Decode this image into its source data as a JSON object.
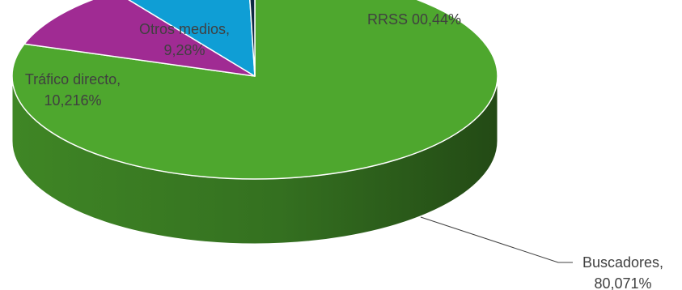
{
  "chart_data": {
    "type": "pie",
    "title": "",
    "categories": [
      "Buscadores",
      "Tráfico directo",
      "Otros medios",
      "RRSS"
    ],
    "values": [
      80.071,
      10.216,
      9.28,
      0.44
    ],
    "series": [
      {
        "values": [
          80.071,
          10.216,
          9.28,
          0.44
        ]
      }
    ],
    "data_labels": [
      {
        "line1": "Buscadores,",
        "line2": "80,071%"
      },
      {
        "line1": "Tráfico directo,",
        "line2": "10,216%"
      },
      {
        "line1": "Otros medios,",
        "line2": "9,28%"
      },
      {
        "line1": "RRSS 00,44%",
        "line2": ""
      }
    ],
    "colors": [
      "#4ea72e",
      "#a02b93",
      "#0f9ed5",
      "#0e2841"
    ],
    "legend": "none",
    "style": "3d-pie"
  }
}
